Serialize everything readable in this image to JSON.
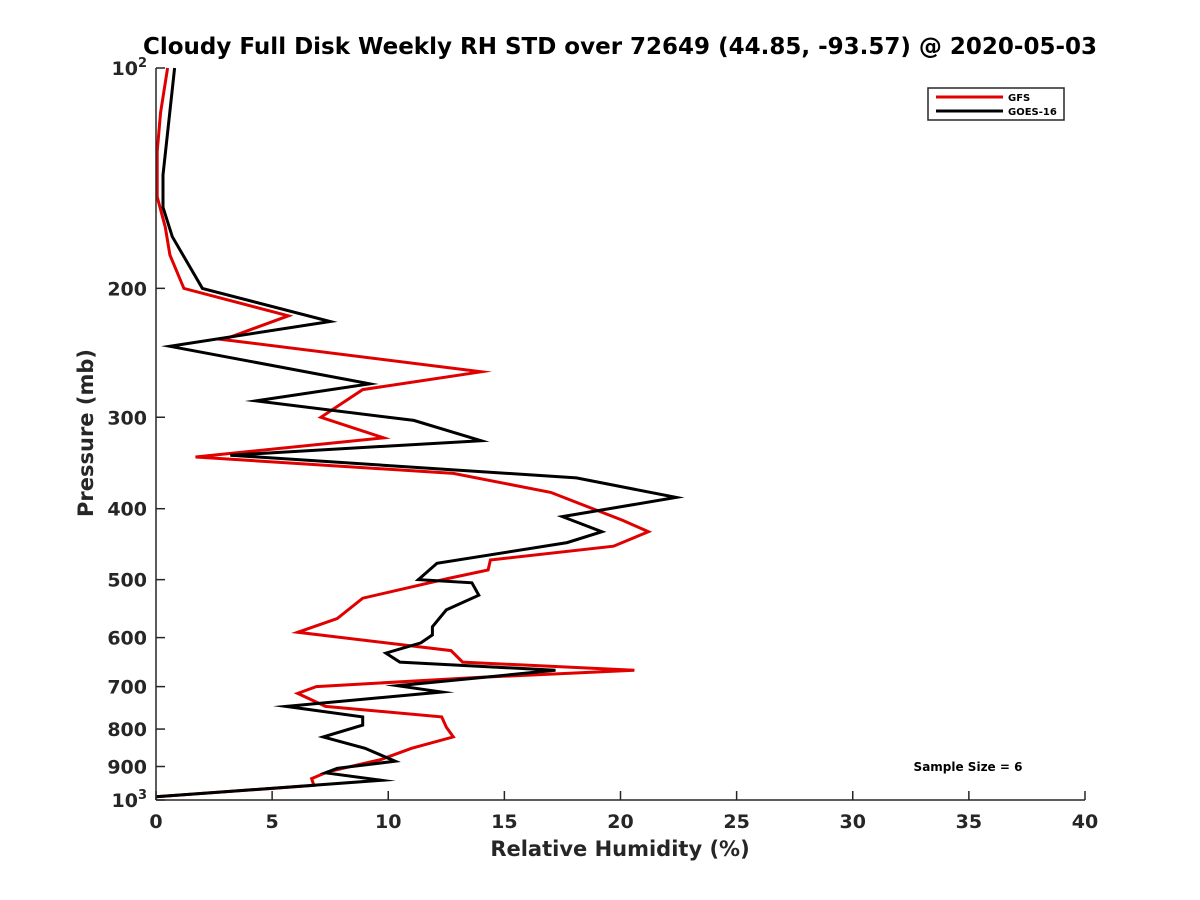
{
  "chart_data": {
    "type": "line",
    "title": "Cloudy Full Disk Weekly RH STD over 72649 (44.85, -93.57) @ 2020-05-03",
    "xlabel": "Relative Humidity (%)",
    "ylabel": "Pressure (mb)",
    "xlim": [
      0,
      40
    ],
    "ylim": [
      100,
      1000
    ],
    "yscale": "log",
    "y_reversed": true,
    "x_ticks": [
      0,
      5,
      10,
      15,
      20,
      25,
      30,
      35,
      40
    ],
    "x_tick_labels": [
      "0",
      "5",
      "10",
      "15",
      "20",
      "25",
      "30",
      "35",
      "40"
    ],
    "y_ticks": [
      100,
      200,
      300,
      400,
      500,
      600,
      700,
      800,
      900,
      1000
    ],
    "y_tick_labels": [
      {
        "base": "10",
        "exp": "2"
      },
      {
        "base": "200"
      },
      {
        "base": "300"
      },
      {
        "base": "400"
      },
      {
        "base": "500"
      },
      {
        "base": "600"
      },
      {
        "base": "700"
      },
      {
        "base": "800"
      },
      {
        "base": "900"
      },
      {
        "base": "10",
        "exp": "3"
      }
    ],
    "grid": false,
    "legend_position": "top-right",
    "annotation": "Sample Size = 6",
    "series": [
      {
        "name": "GFS",
        "color": "#e00000",
        "points": [
          [
            0.5,
            100
          ],
          [
            0.2,
            115
          ],
          [
            0.05,
            130
          ],
          [
            0.05,
            150
          ],
          [
            0.4,
            165
          ],
          [
            0.6,
            180
          ],
          [
            1.2,
            200
          ],
          [
            5.7,
            218
          ],
          [
            2.9,
            235
          ],
          [
            14.0,
            260
          ],
          [
            8.9,
            275
          ],
          [
            7.1,
            300
          ],
          [
            9.8,
            320
          ],
          [
            1.7,
            340
          ],
          [
            12.8,
            358
          ],
          [
            17.0,
            380
          ],
          [
            20.1,
            415
          ],
          [
            21.2,
            430
          ],
          [
            19.7,
            450
          ],
          [
            14.4,
            470
          ],
          [
            14.3,
            485
          ],
          [
            12.6,
            498
          ],
          [
            8.9,
            530
          ],
          [
            7.8,
            565
          ],
          [
            6.1,
            590
          ],
          [
            12.7,
            625
          ],
          [
            13.2,
            648
          ],
          [
            20.6,
            665
          ],
          [
            13.9,
            680
          ],
          [
            6.9,
            700
          ],
          [
            6.1,
            715
          ],
          [
            7.3,
            745
          ],
          [
            12.3,
            770
          ],
          [
            12.5,
            795
          ],
          [
            12.8,
            820
          ],
          [
            11.0,
            850
          ],
          [
            9.7,
            880
          ],
          [
            7.4,
            915
          ],
          [
            6.7,
            935
          ],
          [
            6.8,
            955
          ],
          [
            0.0,
            990
          ]
        ]
      },
      {
        "name": "GOES-16",
        "color": "#000000",
        "points": [
          [
            0.8,
            100
          ],
          [
            0.3,
            140
          ],
          [
            0.3,
            155
          ],
          [
            0.7,
            170
          ],
          [
            2.0,
            200
          ],
          [
            7.5,
            222
          ],
          [
            0.6,
            240
          ],
          [
            9.2,
            270
          ],
          [
            4.3,
            285
          ],
          [
            11.1,
            303
          ],
          [
            14.0,
            323
          ],
          [
            3.2,
            338
          ],
          [
            18.1,
            363
          ],
          [
            22.4,
            386
          ],
          [
            17.5,
            410
          ],
          [
            19.2,
            430
          ],
          [
            17.7,
            445
          ],
          [
            12.1,
            475
          ],
          [
            11.3,
            500
          ],
          [
            13.6,
            505
          ],
          [
            13.9,
            525
          ],
          [
            12.5,
            550
          ],
          [
            11.9,
            580
          ],
          [
            11.9,
            595
          ],
          [
            11.4,
            610
          ],
          [
            9.9,
            630
          ],
          [
            10.5,
            648
          ],
          [
            17.2,
            665
          ],
          [
            10.4,
            698
          ],
          [
            12.3,
            712
          ],
          [
            5.6,
            745
          ],
          [
            8.9,
            770
          ],
          [
            8.9,
            790
          ],
          [
            7.2,
            820
          ],
          [
            9.0,
            850
          ],
          [
            10.3,
            885
          ],
          [
            7.8,
            905
          ],
          [
            7.3,
            918
          ],
          [
            9.7,
            940
          ],
          [
            0.0,
            990
          ]
        ]
      }
    ]
  }
}
